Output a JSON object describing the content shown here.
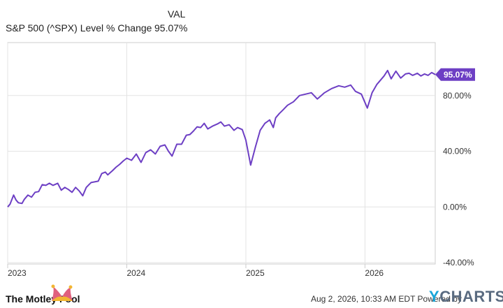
{
  "legend": {
    "header": "VAL",
    "series_name": "S&P 500 (^SPX) Level % Change",
    "series_value": "95.07%"
  },
  "footer": {
    "timestamp": "Aug 2, 2026, 10:33 AM EDT Powered by",
    "brand_y": "Y",
    "brand_rest": "CHARTS",
    "logo_text": "The Motley Fool"
  },
  "colors": {
    "line": "#6d3fc4",
    "grid": "#e3e3e3",
    "axis_text": "#333333",
    "frame": "#cccccc"
  },
  "chart_data": {
    "type": "line",
    "title": "",
    "xlabel": "",
    "ylabel": "",
    "x_tick_labels": [
      "2023",
      "2024",
      "2025",
      "2026"
    ],
    "x_tick_positions": [
      2023.0,
      2024.0,
      2025.0,
      2026.0
    ],
    "xlim": [
      2023.0,
      2026.59
    ],
    "y_tick_labels": [
      "-40.00%",
      "0.00%",
      "40.00%",
      "80.00%"
    ],
    "y_tick_values": [
      -40,
      0,
      40,
      80
    ],
    "ylim": [
      -41,
      118
    ],
    "grid": true,
    "series": [
      {
        "name": "S&P 500 (^SPX) Level % Change",
        "end_label": "95.07%",
        "x": [
          2023.0,
          2023.02,
          2023.05,
          2023.07,
          2023.09,
          2023.12,
          2023.14,
          2023.17,
          2023.2,
          2023.23,
          2023.26,
          2023.29,
          2023.32,
          2023.35,
          2023.38,
          2023.42,
          2023.45,
          2023.48,
          2023.51,
          2023.54,
          2023.57,
          2023.6,
          2023.63,
          2023.66,
          2023.7,
          2023.73,
          2023.76,
          2023.79,
          2023.82,
          2023.84,
          2023.88,
          2023.91,
          2023.94,
          2023.97,
          2024.0,
          2024.04,
          2024.08,
          2024.12,
          2024.16,
          2024.2,
          2024.24,
          2024.28,
          2024.32,
          2024.35,
          2024.38,
          2024.42,
          2024.46,
          2024.5,
          2024.53,
          2024.56,
          2024.59,
          2024.62,
          2024.65,
          2024.68,
          2024.72,
          2024.76,
          2024.79,
          2024.82,
          2024.86,
          2024.9,
          2024.93,
          2024.97,
          2025.0,
          2025.04,
          2025.08,
          2025.12,
          2025.16,
          2025.2,
          2025.23,
          2025.25,
          2025.28,
          2025.31,
          2025.35,
          2025.4,
          2025.45,
          2025.5,
          2025.55,
          2025.6,
          2025.66,
          2025.72,
          2025.78,
          2025.83,
          2025.88,
          2025.92,
          2025.97,
          2026.02,
          2026.06,
          2026.1,
          2026.13,
          2026.16,
          2026.19,
          2026.22,
          2026.26,
          2026.3,
          2026.34,
          2026.37,
          2026.4,
          2026.44,
          2026.47,
          2026.5,
          2026.53,
          2026.56,
          2026.59
        ],
        "values": [
          0.0,
          2.0,
          8.5,
          5.0,
          3.0,
          2.5,
          5.5,
          8.5,
          7.0,
          10.5,
          11.0,
          16.0,
          15.5,
          17.0,
          15.5,
          17.0,
          12.0,
          14.0,
          12.5,
          10.5,
          14.0,
          11.5,
          8.0,
          14.0,
          17.5,
          18.0,
          18.5,
          24.0,
          25.0,
          23.0,
          26.0,
          28.5,
          30.5,
          33.0,
          35.0,
          33.5,
          38.0,
          32.0,
          39.0,
          41.0,
          38.0,
          43.5,
          44.5,
          40.0,
          36.5,
          45.0,
          45.0,
          51.5,
          52.0,
          54.5,
          57.5,
          57.0,
          60.0,
          56.0,
          58.0,
          59.5,
          61.0,
          58.0,
          59.0,
          55.0,
          57.0,
          55.5,
          48.0,
          30.0,
          43.0,
          55.0,
          60.0,
          62.5,
          57.0,
          64.0,
          67.0,
          69.5,
          73.0,
          75.5,
          80.0,
          81.0,
          82.0,
          77.5,
          82.0,
          85.0,
          87.0,
          86.0,
          87.5,
          83.0,
          81.0,
          71.0,
          82.0,
          88.0,
          91.0,
          94.0,
          98.0,
          92.0,
          97.5,
          92.5,
          95.5,
          96.0,
          94.5,
          96.0,
          94.0,
          95.5,
          94.5,
          96.5,
          95.07
        ]
      }
    ]
  }
}
